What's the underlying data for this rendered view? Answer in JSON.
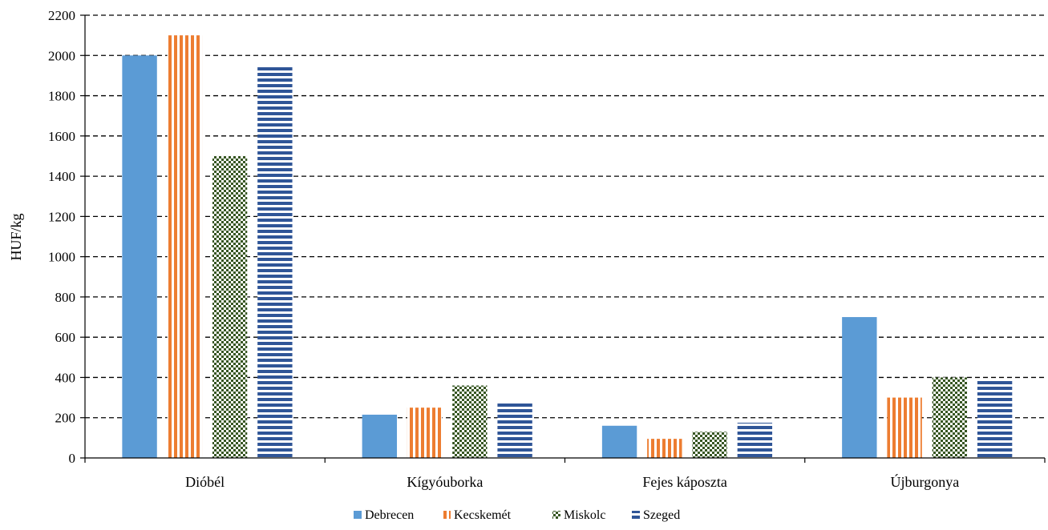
{
  "chart_data": {
    "type": "bar",
    "categories": [
      "Dióbél",
      "Kígyóuborka",
      "Fejes káposzta",
      "Újburgonya"
    ],
    "series": [
      {
        "name": "Debrecen",
        "values": [
          2000,
          215,
          160,
          700
        ],
        "color": "#5b9bd5",
        "pattern": "solid"
      },
      {
        "name": "Kecskemét",
        "values": [
          2100,
          250,
          95,
          300
        ],
        "color": "#ed7d31",
        "pattern": "vertical-stripes"
      },
      {
        "name": "Miskolc",
        "values": [
          1500,
          360,
          130,
          400
        ],
        "color": "#375623",
        "pattern": "checker"
      },
      {
        "name": "Szeged",
        "values": [
          1950,
          280,
          175,
          385
        ],
        "color": "#2f5597",
        "pattern": "horizontal-stripes"
      }
    ],
    "xlabel": "",
    "ylabel": "HUF/kg",
    "ylim": [
      0,
      2200
    ],
    "yticks": [
      0,
      200,
      400,
      600,
      800,
      1000,
      1200,
      1400,
      1600,
      1800,
      2000,
      2200
    ],
    "grid": "horizontal-dashed",
    "legend": "bottom"
  }
}
